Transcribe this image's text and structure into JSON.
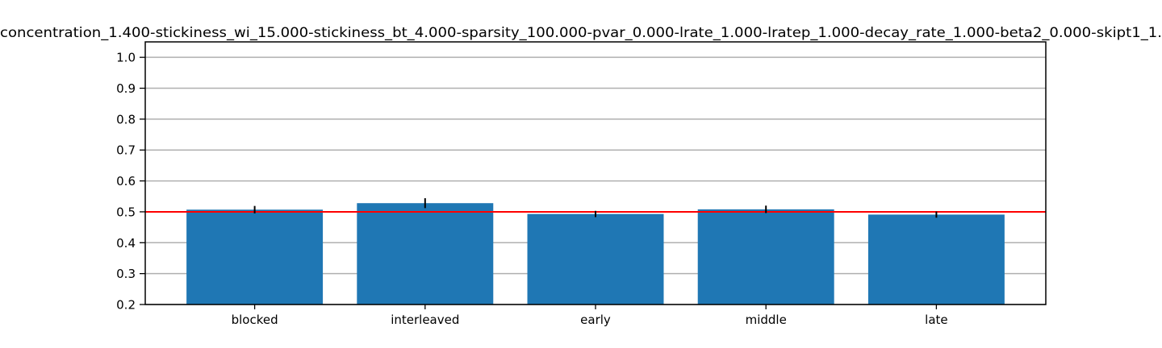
{
  "chart_data": {
    "type": "bar",
    "title": "concentration_1.400-stickiness_wi_15.000-stickiness_bt_4.000-sparsity_100.000-pvar_0.000-lrate_1.000-lratep_1.000-decay_rate_1.000-beta2_0.000-skipt1_1.",
    "xlabel": "",
    "ylabel": "",
    "categories": [
      "blocked",
      "interleaved",
      "early",
      "middle",
      "late"
    ],
    "values": [
      0.507,
      0.528,
      0.493,
      0.508,
      0.491
    ],
    "errors": [
      0.012,
      0.016,
      0.01,
      0.012,
      0.01
    ],
    "ylim": [
      0.2,
      1.05
    ],
    "yticks": [
      0.2,
      0.3,
      0.4,
      0.5,
      0.6,
      0.7,
      0.8,
      0.9,
      1.0
    ],
    "ytick_labels": [
      "0.2",
      "0.3",
      "0.4",
      "0.5",
      "0.6",
      "0.7",
      "0.8",
      "0.9",
      "1.0"
    ],
    "reference_line": 0.5,
    "grid": "horizontal",
    "legend": "none"
  },
  "colors": {
    "bar": "#1f77b4",
    "grid": "#b0b0b0",
    "reference_line": "#ff0000",
    "error_bar": "#000000",
    "axes": "#000000"
  }
}
